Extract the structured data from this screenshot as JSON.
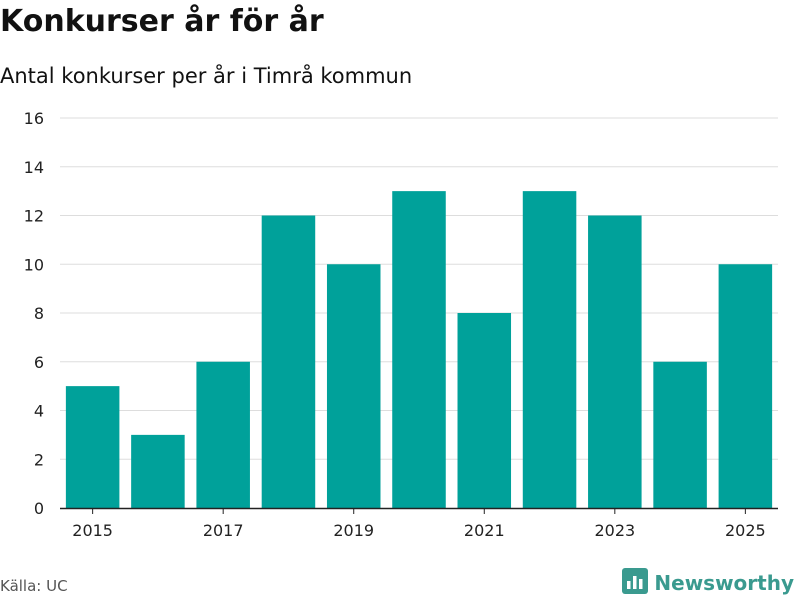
{
  "title": "Konkurser år för år",
  "subtitle": "Antal konkurser per år i Timrå kommun",
  "source": "Källa: UC",
  "brand": {
    "name": "Newsworthy",
    "icon": "newsworthy-logo-icon",
    "color": "#3a9a8f"
  },
  "colors": {
    "bar": "#00a19a",
    "grid": "#dddddd",
    "axis": "#222222"
  },
  "chart_data": {
    "type": "bar",
    "categories": [
      "2015",
      "2016",
      "2017",
      "2018",
      "2019",
      "2020",
      "2021",
      "2022",
      "2023",
      "2024",
      "2025"
    ],
    "values": [
      5,
      3,
      6,
      12,
      10,
      13,
      8,
      13,
      12,
      6,
      10
    ],
    "x_tick_labels": [
      "2015",
      "2017",
      "2019",
      "2021",
      "2023",
      "2025"
    ],
    "y_ticks": [
      0,
      2,
      4,
      6,
      8,
      10,
      12,
      14,
      16
    ],
    "ylim": [
      0,
      16
    ],
    "grid": true,
    "xlabel": "",
    "ylabel": ""
  }
}
